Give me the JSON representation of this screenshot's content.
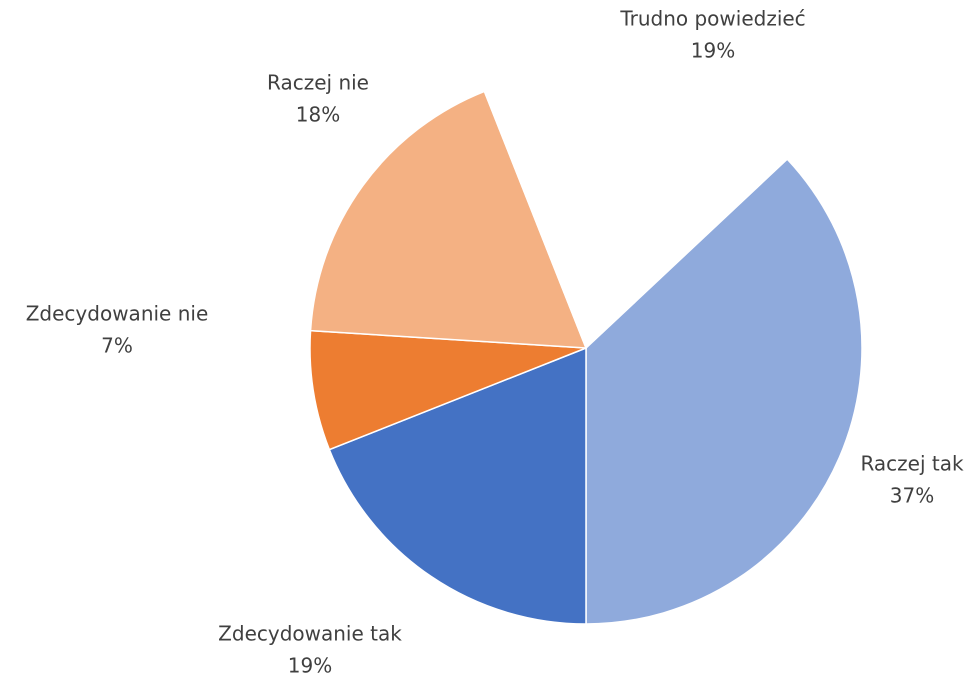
{
  "chart_data": {
    "type": "pie",
    "categories": [
      "Raczej tak",
      "Zdecydowanie tak",
      "Zdecydowanie nie",
      "Raczej nie",
      "Trudno powiedzieć"
    ],
    "values": [
      37,
      19,
      7,
      18,
      19
    ],
    "value_labels": [
      "37%",
      "19%",
      "7%",
      "18%",
      "19%"
    ],
    "colors": [
      "#8faadc",
      "#4472c4",
      "#ed7d31",
      "#f4b183",
      "#ffffff"
    ]
  }
}
